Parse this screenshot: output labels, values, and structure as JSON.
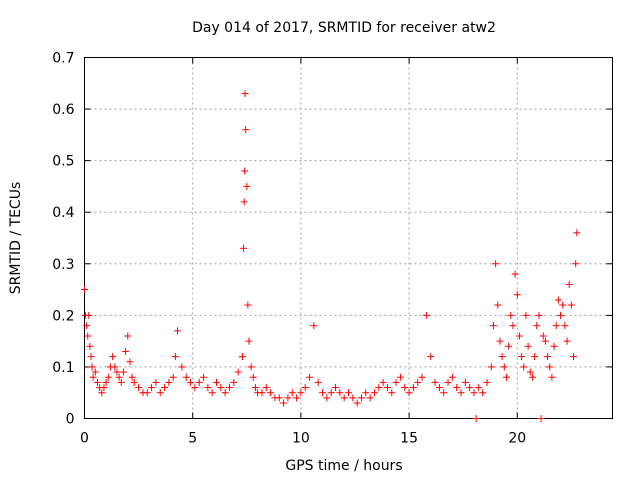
{
  "chart_data": {
    "type": "scatter",
    "title": "Day 014 of 2017, SRMTID for receiver atw2",
    "xlabel": "GPS time / hours",
    "ylabel": "SRMTID / TECUs",
    "xlim": [
      0,
      24.4
    ],
    "ylim": [
      0,
      0.7
    ],
    "x_ticks": [
      0,
      5,
      10,
      15,
      20
    ],
    "y_ticks": [
      0,
      0.1,
      0.2,
      0.3,
      0.4,
      0.5,
      0.6,
      0.7
    ],
    "x_tick_labels": [
      "0",
      "5",
      "10",
      "15",
      "20"
    ],
    "y_tick_labels": [
      "0",
      "0.1",
      "0.2",
      "0.3",
      "0.4",
      "0.5",
      "0.6",
      "0.7"
    ],
    "grid": true,
    "marker": "plus",
    "marker_color": "#ff0000",
    "series": [
      {
        "name": "SRMTID",
        "x": [
          0.0,
          0.05,
          0.1,
          0.15,
          0.2,
          0.25,
          0.3,
          0.35,
          0.4,
          0.5,
          0.6,
          0.7,
          0.8,
          0.9,
          1.0,
          1.1,
          1.2,
          1.3,
          1.4,
          1.5,
          1.6,
          1.7,
          1.8,
          1.9,
          2.0,
          2.1,
          2.2,
          2.3,
          2.5,
          2.7,
          2.9,
          3.1,
          3.3,
          3.5,
          3.7,
          3.9,
          4.1,
          4.2,
          4.3,
          4.5,
          4.7,
          4.9,
          5.1,
          5.3,
          5.5,
          5.7,
          5.9,
          6.1,
          6.3,
          6.5,
          6.7,
          6.9,
          7.1,
          7.3,
          7.35,
          7.38,
          7.4,
          7.42,
          7.45,
          7.5,
          7.55,
          7.6,
          7.7,
          7.8,
          7.9,
          8.0,
          8.2,
          8.4,
          8.6,
          8.8,
          9.0,
          9.2,
          9.4,
          9.6,
          9.8,
          10.0,
          10.2,
          10.4,
          10.6,
          10.8,
          11.0,
          11.2,
          11.4,
          11.6,
          11.8,
          12.0,
          12.2,
          12.4,
          12.6,
          12.8,
          13.0,
          13.2,
          13.4,
          13.6,
          13.8,
          14.0,
          14.2,
          14.4,
          14.6,
          14.8,
          15.0,
          15.2,
          15.4,
          15.6,
          15.8,
          16.0,
          16.2,
          16.4,
          16.6,
          16.8,
          17.0,
          17.2,
          17.4,
          17.6,
          17.8,
          18.0,
          18.1,
          18.2,
          18.4,
          18.6,
          18.8,
          18.9,
          19.0,
          19.1,
          19.2,
          19.3,
          19.4,
          19.5,
          19.6,
          19.7,
          19.8,
          19.9,
          20.0,
          20.1,
          20.2,
          20.3,
          20.4,
          20.5,
          20.6,
          20.7,
          20.8,
          20.9,
          21.0,
          21.1,
          21.2,
          21.3,
          21.4,
          21.5,
          21.6,
          21.7,
          21.8,
          21.9,
          22.0,
          22.1,
          22.2,
          22.3,
          22.4,
          22.5,
          22.6,
          22.7,
          22.75
        ],
        "y": [
          0.25,
          0.2,
          0.18,
          0.16,
          0.2,
          0.14,
          0.12,
          0.1,
          0.08,
          0.09,
          0.07,
          0.06,
          0.05,
          0.06,
          0.07,
          0.08,
          0.1,
          0.12,
          0.1,
          0.09,
          0.08,
          0.07,
          0.09,
          0.13,
          0.16,
          0.11,
          0.08,
          0.07,
          0.06,
          0.05,
          0.05,
          0.06,
          0.07,
          0.05,
          0.06,
          0.07,
          0.08,
          0.12,
          0.17,
          0.1,
          0.08,
          0.07,
          0.06,
          0.07,
          0.08,
          0.06,
          0.05,
          0.07,
          0.06,
          0.05,
          0.06,
          0.07,
          0.09,
          0.12,
          0.33,
          0.42,
          0.48,
          0.63,
          0.56,
          0.45,
          0.22,
          0.15,
          0.1,
          0.08,
          0.06,
          0.05,
          0.05,
          0.06,
          0.05,
          0.04,
          0.04,
          0.03,
          0.04,
          0.05,
          0.04,
          0.05,
          0.06,
          0.08,
          0.18,
          0.07,
          0.05,
          0.04,
          0.05,
          0.06,
          0.05,
          0.04,
          0.05,
          0.04,
          0.03,
          0.04,
          0.05,
          0.04,
          0.05,
          0.06,
          0.07,
          0.06,
          0.05,
          0.07,
          0.08,
          0.06,
          0.05,
          0.06,
          0.07,
          0.08,
          0.2,
          0.12,
          0.07,
          0.06,
          0.05,
          0.07,
          0.08,
          0.06,
          0.05,
          0.07,
          0.06,
          0.05,
          0.0,
          0.06,
          0.05,
          0.07,
          0.1,
          0.18,
          0.3,
          0.22,
          0.15,
          0.12,
          0.1,
          0.08,
          0.14,
          0.2,
          0.18,
          0.28,
          0.24,
          0.16,
          0.12,
          0.1,
          0.2,
          0.14,
          0.09,
          0.08,
          0.12,
          0.18,
          0.2,
          0.0,
          0.16,
          0.15,
          0.12,
          0.1,
          0.08,
          0.14,
          0.18,
          0.23,
          0.2,
          0.22,
          0.18,
          0.15,
          0.26,
          0.22,
          0.12,
          0.3,
          0.36
        ]
      }
    ]
  }
}
